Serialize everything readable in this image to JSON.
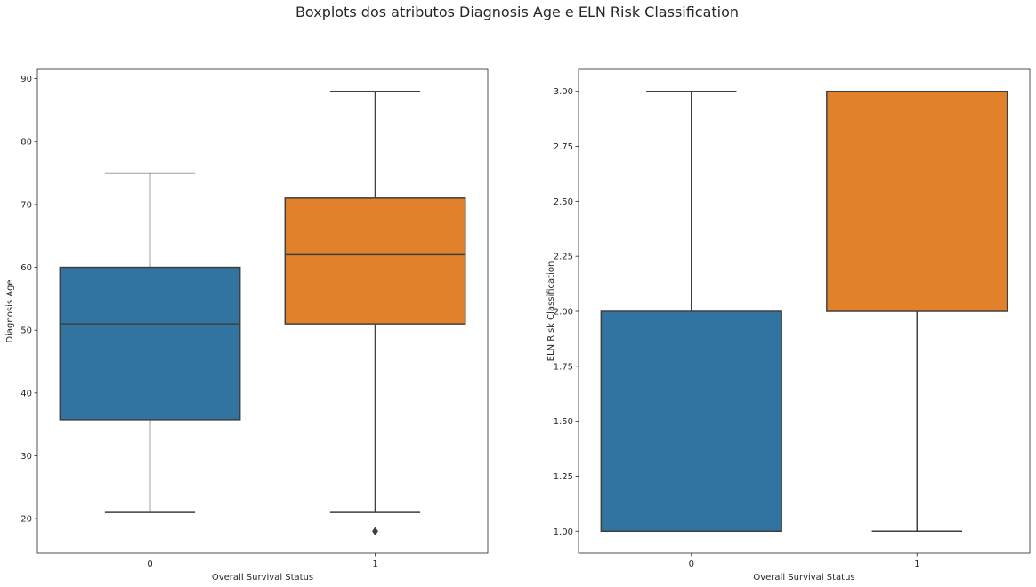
{
  "figure": {
    "suptitle": "Boxplots dos atributos Diagnosis Age e ELN Risk Classification"
  },
  "colors": {
    "series_0": "#3274a1",
    "series_1": "#e1812c",
    "line": "#3f3f3f",
    "axes_edge": "#262626"
  },
  "chart_data": [
    {
      "type": "boxplot",
      "title": "",
      "xlabel": "Overall Survival Status",
      "ylabel": "Diagnosis Age",
      "categories": [
        "0",
        "1"
      ],
      "ylim": [
        14.5,
        91.5
      ],
      "yticks": [
        20,
        30,
        40,
        50,
        60,
        70,
        80,
        90
      ],
      "ytick_labels": [
        "20",
        "30",
        "40",
        "50",
        "60",
        "70",
        "80",
        "90"
      ],
      "grid": false,
      "boxes": [
        {
          "category": "0",
          "whisker_low": 21,
          "q1": 35.75,
          "median": 51,
          "q3": 60,
          "whisker_high": 75,
          "outliers": []
        },
        {
          "category": "1",
          "whisker_low": 21,
          "q1": 51,
          "median": 62,
          "q3": 71,
          "whisker_high": 88,
          "outliers": [
            18
          ]
        }
      ]
    },
    {
      "type": "boxplot",
      "title": "",
      "xlabel": "Overall Survival Status",
      "ylabel": "ELN Risk Classification",
      "categories": [
        "0",
        "1"
      ],
      "ylim": [
        0.9,
        3.1
      ],
      "yticks": [
        1.0,
        1.25,
        1.5,
        1.75,
        2.0,
        2.25,
        2.5,
        2.75,
        3.0
      ],
      "ytick_labels": [
        "1.00",
        "1.25",
        "1.50",
        "1.75",
        "2.00",
        "2.25",
        "2.50",
        "2.75",
        "3.00"
      ],
      "grid": false,
      "boxes": [
        {
          "category": "0",
          "whisker_low": 1,
          "q1": 1,
          "median": 1,
          "q3": 2,
          "whisker_high": 3,
          "outliers": []
        },
        {
          "category": "1",
          "whisker_low": 1,
          "q1": 2,
          "median": 3,
          "q3": 3,
          "whisker_high": 3,
          "outliers": []
        }
      ]
    }
  ]
}
